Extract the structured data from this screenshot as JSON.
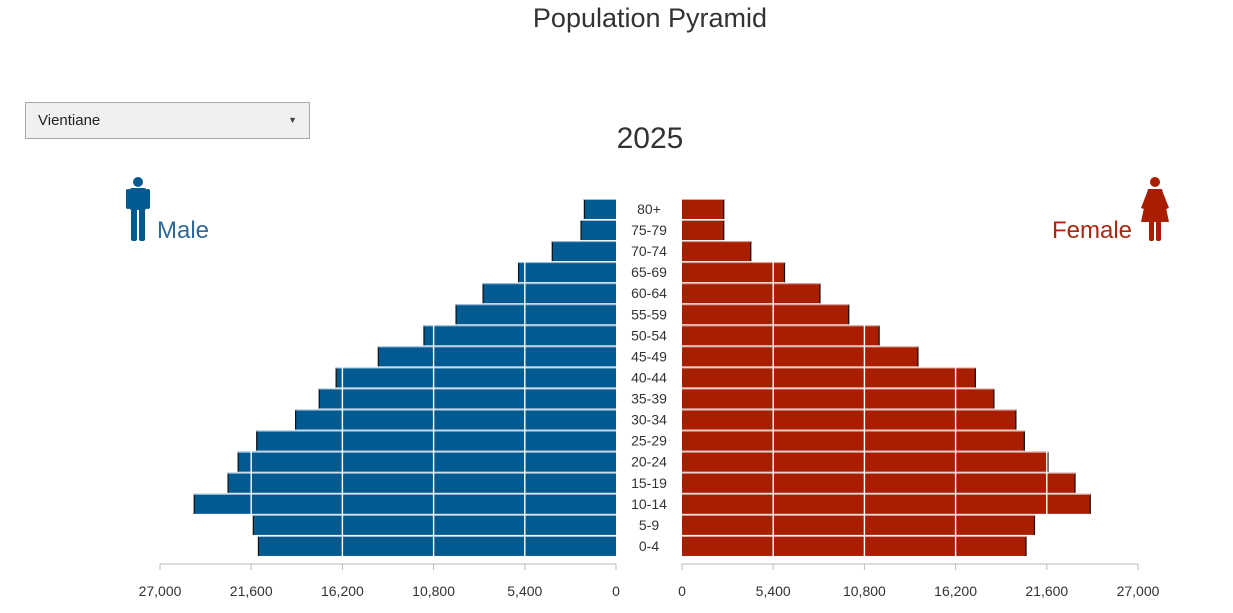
{
  "page": {
    "title": "Population Pyramid"
  },
  "controls": {
    "region": "Vientiane"
  },
  "legend": {
    "male": "Male",
    "female": "Female"
  },
  "colors": {
    "male": "#035a91",
    "male_edge": "#9ec0dd",
    "female": "#a91d00",
    "female_edge": "#d4a89f",
    "axis": "#bbbbbb",
    "grid": "#ffffff"
  },
  "chart_data": {
    "type": "bar",
    "orientation": "horizontal-pyramid",
    "title": "2025",
    "age_groups": [
      "0-4",
      "5-9",
      "10-14",
      "15-19",
      "20-24",
      "25-29",
      "30-34",
      "35-39",
      "40-44",
      "45-49",
      "50-54",
      "55-59",
      "60-64",
      "65-69",
      "70-74",
      "75-79",
      "80+"
    ],
    "series": [
      {
        "name": "Male",
        "side": "left",
        "values": [
          21200,
          21500,
          25000,
          23000,
          22400,
          21300,
          19000,
          17600,
          16600,
          14100,
          11400,
          9500,
          7900,
          5800,
          3800,
          2100,
          1900
        ]
      },
      {
        "name": "Female",
        "side": "right",
        "values": [
          20400,
          20900,
          24200,
          23300,
          21700,
          20300,
          19800,
          18500,
          17400,
          14000,
          11700,
          9900,
          8200,
          6100,
          4100,
          2500,
          2500
        ]
      }
    ],
    "axis_range": [
      0,
      27000
    ],
    "ticks": [
      0,
      5400,
      10800,
      16200,
      21600,
      27000
    ],
    "tick_labels": [
      "0",
      "5,400",
      "10,800",
      "16,200",
      "21,600",
      "27,000"
    ]
  }
}
